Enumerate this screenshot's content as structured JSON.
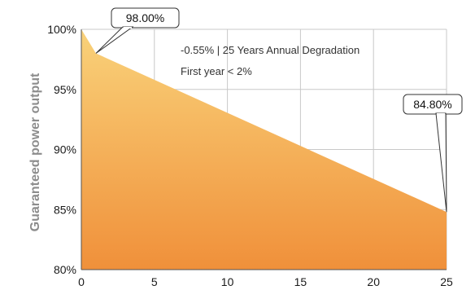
{
  "chart_data": {
    "type": "area",
    "x": [
      0,
      1,
      25
    ],
    "series": [
      {
        "values": [
          100,
          98.0,
          84.8
        ]
      }
    ],
    "xlabel": "",
    "ylabel": "Guaranteed power output",
    "xlim": [
      0,
      25
    ],
    "ylim": [
      80,
      100
    ],
    "x_ticks": [
      "0",
      "5",
      "10",
      "15",
      "20",
      "25"
    ],
    "y_ticks": [
      "80%",
      "85%",
      "90%",
      "95%",
      "100%"
    ],
    "grid": true,
    "annotations": {
      "line1": "-0.55%  | 25 Years Annual Degradation",
      "line2": "First year  < 2%"
    },
    "callouts": {
      "first_year": "98.00%",
      "final_year": "84.80%"
    },
    "colors": {
      "fill_top": "#f9d27a",
      "fill_bottom": "#f0903a",
      "grid": "#c8c8c8",
      "axis": "#555555"
    }
  }
}
